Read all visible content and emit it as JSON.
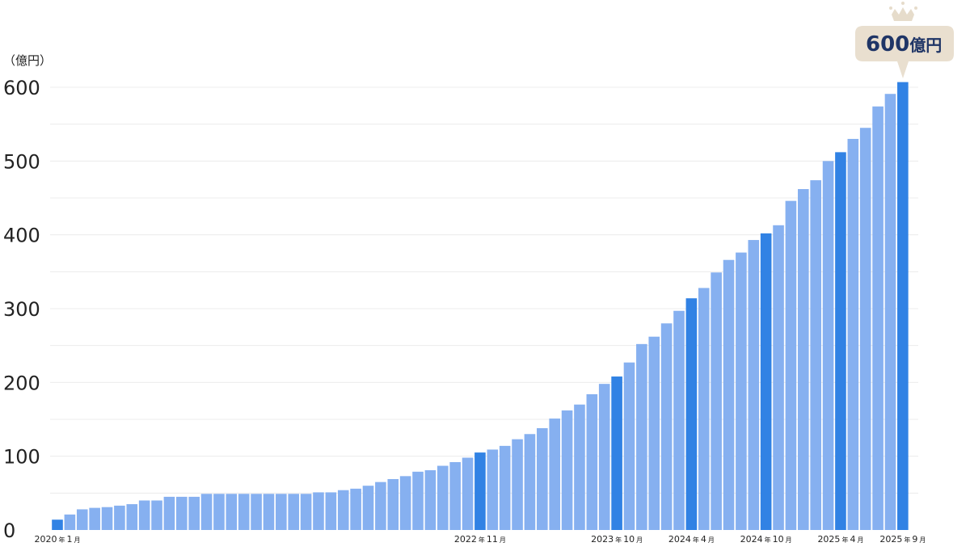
{
  "chart_data": {
    "type": "bar",
    "title": "",
    "ylabel": "（億円）",
    "xlabel": "",
    "ylim": [
      0,
      600
    ],
    "yticks": [
      0,
      100,
      200,
      300,
      400,
      500,
      600
    ],
    "grid": true,
    "first_month": "2020-01",
    "last_month": "2025-09",
    "values": [
      14,
      21,
      28,
      30,
      31,
      33,
      35,
      40,
      40,
      45,
      45,
      45,
      49,
      49,
      49,
      49,
      49,
      49,
      49,
      49,
      49,
      51,
      51,
      54,
      56,
      60,
      65,
      69,
      73,
      79,
      81,
      87,
      92,
      98,
      105,
      109,
      114,
      123,
      130,
      138,
      151,
      162,
      170,
      184,
      198,
      208,
      227,
      252,
      262,
      280,
      297,
      314,
      328,
      349,
      366,
      376,
      393,
      402,
      413,
      446,
      462,
      474,
      500,
      512,
      530,
      545,
      574,
      591,
      607
    ],
    "highlight_indices": [
      0,
      34,
      45,
      51,
      57,
      63,
      68
    ],
    "x_labels": [
      {
        "index": 0,
        "year": "2020",
        "nen": "年",
        "month": "1",
        "tsuki": "月"
      },
      {
        "index": 34,
        "year": "2022",
        "nen": "年",
        "month": "11",
        "tsuki": "月"
      },
      {
        "index": 45,
        "year": "2023",
        "nen": "年",
        "month": "10",
        "tsuki": "月"
      },
      {
        "index": 51,
        "year": "2024",
        "nen": "年",
        "month": "4",
        "tsuki": "月"
      },
      {
        "index": 57,
        "year": "2024",
        "nen": "年",
        "month": "10",
        "tsuki": "月"
      },
      {
        "index": 63,
        "year": "2025",
        "nen": "年",
        "month": "4",
        "tsuki": "月"
      },
      {
        "index": 68,
        "year": "2025",
        "nen": "年",
        "month": "9",
        "tsuki": "月"
      }
    ],
    "annotation": {
      "value": "600",
      "unit": "億円"
    },
    "colors": {
      "bar": "#86b0f0",
      "highlight": "#3182e4",
      "callout_bg": "#e9dfcf",
      "callout_text": "#1f3566",
      "crown": "#e6dccb",
      "grid": "#ececec"
    }
  }
}
